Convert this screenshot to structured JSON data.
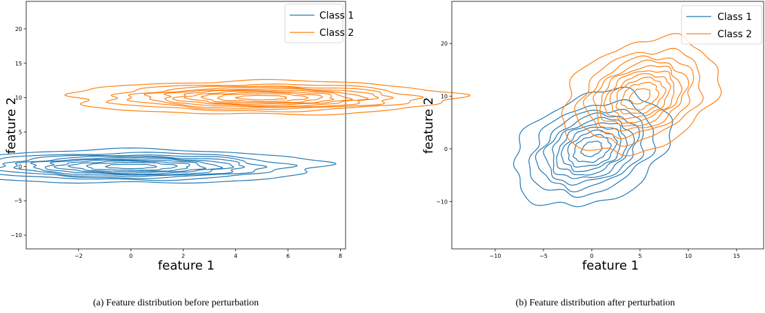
{
  "chart_data": [
    {
      "type": "contour",
      "caption": "(a) Feature distribution before perturbation",
      "xlabel": "feature 1",
      "ylabel": "feature 2",
      "xlim": [
        -4,
        8.2
      ],
      "ylim": [
        -12,
        24
      ],
      "xticks": [
        -2,
        0,
        2,
        4,
        6,
        8
      ],
      "yticks": [
        -10,
        -5,
        0,
        5,
        10,
        15,
        20
      ],
      "legend_position": "top-right",
      "series": [
        {
          "name": "Class 1",
          "color": "#1f77b4",
          "center": [
            0,
            0
          ],
          "std": [
            1.0,
            3.0
          ],
          "rho": 0.0,
          "levels": 10
        },
        {
          "name": "Class 2",
          "color": "#ff7f0e",
          "center": [
            5,
            10
          ],
          "std": [
            1.0,
            3.0
          ],
          "rho": 0.0,
          "levels": 10
        }
      ]
    },
    {
      "type": "contour",
      "caption": "(b) Feature distribution after perturbation",
      "xlabel": "feature 1",
      "ylabel": "feature 2",
      "xlim": [
        -14.5,
        17.8
      ],
      "ylim": [
        -19,
        28
      ],
      "xticks": [
        -10,
        -5,
        0,
        5,
        10,
        15
      ],
      "yticks": [
        -10,
        0,
        10,
        20
      ],
      "legend_position": "top-right",
      "series": [
        {
          "name": "Class 1",
          "color": "#1f77b4",
          "center": [
            0,
            0
          ],
          "std": [
            3.3,
            4.5
          ],
          "rho": 0.3,
          "levels": 10
        },
        {
          "name": "Class 2",
          "color": "#ff7f0e",
          "center": [
            5,
            10
          ],
          "std": [
            3.3,
            4.5
          ],
          "rho": 0.3,
          "levels": 10
        }
      ]
    }
  ]
}
